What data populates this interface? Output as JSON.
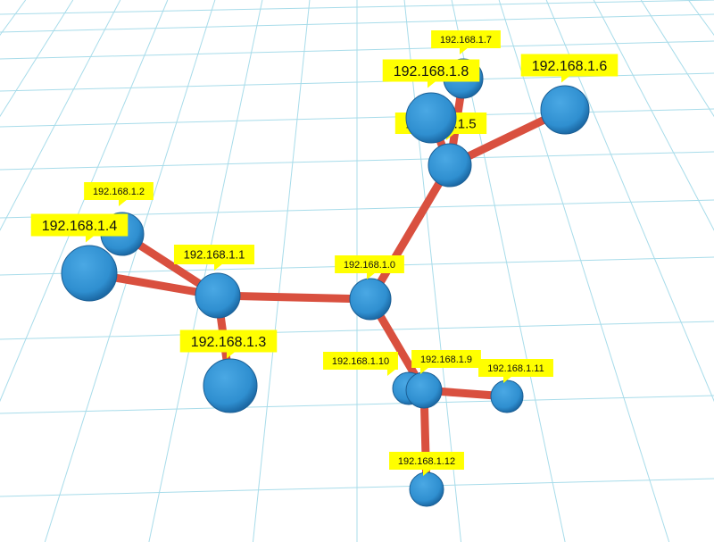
{
  "colors": {
    "node": "#2f8fd0",
    "edge": "#d9503f",
    "label_bg": "#ffff00",
    "grid": "#a8dcea"
  },
  "nodes": [
    {
      "id": "n0",
      "label": "192.168.1.0"
    },
    {
      "id": "n1",
      "label": "192.168.1.1"
    },
    {
      "id": "n2",
      "label": "192.168.1.2"
    },
    {
      "id": "n3",
      "label": "192.168.1.3"
    },
    {
      "id": "n4",
      "label": "192.168.1.4"
    },
    {
      "id": "n5",
      "label": "192.168.1.5"
    },
    {
      "id": "n6",
      "label": "192.168.1.6"
    },
    {
      "id": "n7",
      "label": "192.168.1.7"
    },
    {
      "id": "n8",
      "label": "192.168.1.8"
    },
    {
      "id": "n9",
      "label": "192.168.1.9"
    },
    {
      "id": "n10",
      "label": "192.168.1.10"
    },
    {
      "id": "n11",
      "label": "192.168.1.11"
    },
    {
      "id": "n12",
      "label": "192.168.1.12"
    }
  ],
  "edges": [
    [
      "n1",
      "n2"
    ],
    [
      "n1",
      "n4"
    ],
    [
      "n1",
      "n3"
    ],
    [
      "n1",
      "n0"
    ],
    [
      "n0",
      "n5"
    ],
    [
      "n5",
      "n6"
    ],
    [
      "n5",
      "n7"
    ],
    [
      "n5",
      "n8"
    ],
    [
      "n0",
      "n9"
    ],
    [
      "n9",
      "n11"
    ],
    [
      "n9",
      "n12"
    ],
    [
      "n9",
      "n10"
    ]
  ]
}
